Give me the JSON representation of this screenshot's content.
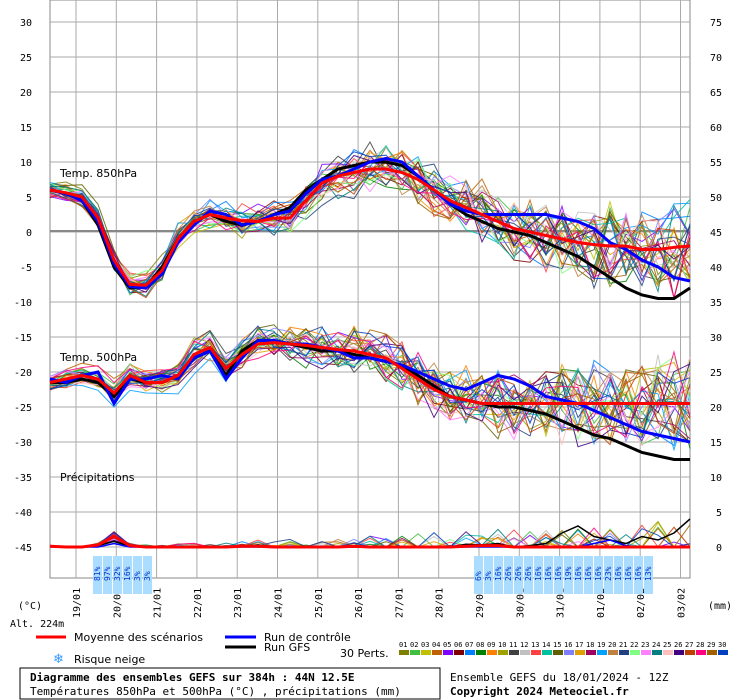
{
  "chart_data": {
    "type": "line",
    "title": "Diagramme des ensembles GEFS sur 384h : 44N 12.5E",
    "subtitle": "Températures 850hPa et 500hPa (°C) , précipitations (mm)",
    "run_label": "Ensemble GEFS du 18/01/2024 - 12Z",
    "copyright": "Copyright 2024 Meteociel.fr",
    "left_unit": "(°C)",
    "right_unit": "(mm)",
    "altitude": "Alt. 224m",
    "left_axis": {
      "ticks": [
        "30",
        "25",
        "20",
        "15",
        "10",
        "5",
        "0",
        "-5",
        "-10",
        "-15",
        "-20",
        "-25",
        "-30",
        "-35",
        "-40",
        "-45"
      ],
      "ylim": [
        -45,
        30
      ]
    },
    "right_axis": {
      "ticks": [
        "75",
        "70",
        "65",
        "60",
        "55",
        "50",
        "45",
        "40",
        "35",
        "30",
        "25",
        "20",
        "15",
        "10",
        "5",
        "0"
      ]
    },
    "x_ticks": [
      "19/01",
      "20/01",
      "21/01",
      "22/01",
      "23/01",
      "24/01",
      "25/01",
      "26/01",
      "27/01",
      "28/01",
      "29/01",
      "30/01",
      "31/01",
      "01/02",
      "02/02",
      "03/02"
    ],
    "panels": [
      {
        "label": "Temp. 850hPa",
        "baseline_line": 0
      },
      {
        "label": "Temp. 500hPa"
      },
      {
        "label": "Précipitations"
      }
    ],
    "series": [
      {
        "name": "Moyenne des scénarios",
        "color": "#ff0000",
        "t850": [
          6.0,
          5.6,
          5.0,
          2.0,
          -4.0,
          -7.5,
          -7.6,
          -5.5,
          -1.0,
          1.5,
          2.5,
          2.0,
          1.6,
          1.5,
          2.0,
          2.0,
          4.5,
          7.0,
          8.0,
          8.5,
          9.0,
          9.0,
          8.5,
          7.5,
          6.0,
          4.5,
          3.5,
          2.5,
          1.5,
          0.5,
          0,
          -0.5,
          -1.0,
          -1.5,
          -1.8,
          -2.0,
          -2.0,
          -2.5,
          -2.5,
          -2.2,
          -2.0
        ],
        "t500": [
          -21.5,
          -21.0,
          -20.5,
          -21.0,
          -23.0,
          -20.5,
          -21.5,
          -21.5,
          -20.5,
          -17.5,
          -16.5,
          -19.5,
          -17.5,
          -16.0,
          -15.8,
          -16.0,
          -16.2,
          -16.5,
          -16.8,
          -17.0,
          -17.5,
          -18.0,
          -19.5,
          -21.0,
          -22.5,
          -23.5,
          -24.0,
          -24.5,
          -24.5,
          -24.5,
          -24.5,
          -24.5,
          -24.5,
          -24.5,
          -24.5,
          -24.5,
          -24.5,
          -24.5,
          -24.5,
          -24.5,
          -24.5
        ],
        "precip": [
          0.1,
          0,
          0,
          0.3,
          1.5,
          0.2,
          0,
          0,
          0,
          0,
          0,
          0,
          0.1,
          0.1,
          0,
          0,
          0,
          0,
          0,
          0.1,
          0,
          0,
          0,
          0,
          0,
          0,
          0.1,
          0.2,
          0.2,
          0,
          0,
          0,
          0,
          0,
          0,
          0,
          0,
          0,
          0,
          0,
          0
        ]
      },
      {
        "name": "Run de contrôle",
        "color": "#0000ff",
        "t850": [
          6.0,
          5.5,
          4.5,
          1.5,
          -4.5,
          -7.8,
          -8.0,
          -6.0,
          -1.5,
          1.0,
          3.0,
          2.5,
          1.0,
          1.5,
          2.5,
          3.0,
          5.5,
          7.5,
          8.0,
          9.0,
          10.0,
          10.5,
          10.0,
          8.0,
          6.0,
          4.0,
          3.0,
          2.5,
          2.5,
          2.5,
          2.5,
          2.5,
          2.0,
          1.5,
          0.5,
          -1.5,
          -2.5,
          -4.0,
          -5.0,
          -6.5,
          -7.0
        ],
        "t500": [
          -21.0,
          -21.5,
          -20.5,
          -20.0,
          -24.5,
          -21.0,
          -21.0,
          -20.5,
          -21.0,
          -18.0,
          -17.0,
          -21.0,
          -18.0,
          -15.5,
          -15.5,
          -16.0,
          -16.0,
          -16.5,
          -17.0,
          -18.0,
          -18.0,
          -18.5,
          -19.0,
          -20.0,
          -21.0,
          -22.0,
          -22.5,
          -21.5,
          -20.5,
          -21.0,
          -22.0,
          -23.5,
          -24.0,
          -24.5,
          -25.5,
          -26.5,
          -27.5,
          -28.5,
          -29.0,
          -29.5,
          -30.0
        ],
        "precip": [
          0,
          0,
          0,
          0,
          0.5,
          0,
          0,
          0,
          0,
          0,
          0,
          0,
          0,
          0,
          0,
          0,
          0,
          0,
          0,
          0,
          0,
          0,
          0,
          0,
          0,
          0,
          0,
          0,
          0,
          0,
          0,
          0,
          0,
          0,
          0.5,
          1.0,
          0.2,
          0,
          0,
          0,
          0
        ]
      },
      {
        "name": "Run GFS",
        "color": "#000000",
        "t850": [
          6.0,
          5.5,
          4.5,
          1.0,
          -5.0,
          -8.0,
          -7.8,
          -5.0,
          -1.0,
          1.5,
          2.5,
          1.5,
          1.0,
          1.5,
          2.5,
          3.5,
          6.0,
          7.5,
          9.0,
          9.5,
          10.0,
          10.0,
          9.5,
          8.0,
          6.0,
          4.0,
          2.5,
          1.5,
          0.5,
          0,
          -0.5,
          -1.5,
          -2.5,
          -3.5,
          -5.0,
          -6.5,
          -8.0,
          -9.0,
          -9.5,
          -9.5,
          -8.0
        ],
        "t500": [
          -21.5,
          -21.5,
          -21.0,
          -21.5,
          -23.5,
          -21.0,
          -21.5,
          -21.5,
          -20.5,
          -18.0,
          -17.0,
          -20.5,
          -17.0,
          -15.5,
          -15.5,
          -16.0,
          -16.5,
          -17.0,
          -17.0,
          -17.5,
          -18.0,
          -18.5,
          -19.0,
          -20.5,
          -22.0,
          -23.5,
          -24.0,
          -24.5,
          -25.0,
          -25.0,
          -25.5,
          -26.0,
          -27.0,
          -28.0,
          -29.0,
          -29.5,
          -30.5,
          -31.5,
          -32.0,
          -32.5,
          -32.5
        ],
        "precip": [
          0.2,
          0,
          0,
          0.2,
          0.8,
          0.1,
          0,
          0,
          0,
          0,
          0,
          0,
          0.1,
          0.3,
          0,
          0,
          0,
          0,
          0,
          0,
          0,
          0,
          0,
          0,
          0,
          0,
          0.4,
          0.3,
          0.5,
          0,
          0.2,
          0.5,
          2.0,
          3.0,
          1.5,
          1.0,
          0.5,
          1.5,
          1.0,
          2.0,
          4.0
        ]
      }
    ],
    "snow_probability": {
      "early": [
        "81%",
        "97%",
        "32%",
        "16%",
        "3%",
        "3%"
      ],
      "late": [
        "6%",
        "3%",
        "16%",
        "26%",
        "26%",
        "26%",
        "16%",
        "16%",
        "16%",
        "19%",
        "16%",
        "16%",
        "16%",
        "23%",
        "16%",
        "16%",
        "16%",
        "13%"
      ]
    },
    "legend": {
      "mean": "Moyenne des scénarios",
      "control": "Run de contrôle",
      "gfs": "Run GFS",
      "snow": "Risque neige",
      "perts_label": "30 Perts.",
      "perts": [
        "01",
        "02",
        "03",
        "04",
        "05",
        "06",
        "07",
        "08",
        "09",
        "10",
        "11",
        "12",
        "13",
        "14",
        "15",
        "16",
        "17",
        "18",
        "19",
        "20",
        "21",
        "22",
        "23",
        "24",
        "25",
        "26",
        "27",
        "28",
        "29",
        "30"
      ],
      "pert_colors": [
        "#808000",
        "#40c040",
        "#c0c000",
        "#c06000",
        "#8000ff",
        "#800000",
        "#0080ff",
        "#008000",
        "#ff8000",
        "#a0a000",
        "#404040",
        "#c0c0c0",
        "#ff4040",
        "#00c0a0",
        "#606000",
        "#8080ff",
        "#e0a000",
        "#a00060",
        "#00a0ff",
        "#c08040",
        "#204080",
        "#80ff80",
        "#ff80ff",
        "#008080",
        "#ffc0c0",
        "#400080",
        "#c04000",
        "#ff0080",
        "#a06000",
        "#0040c0"
      ]
    }
  }
}
